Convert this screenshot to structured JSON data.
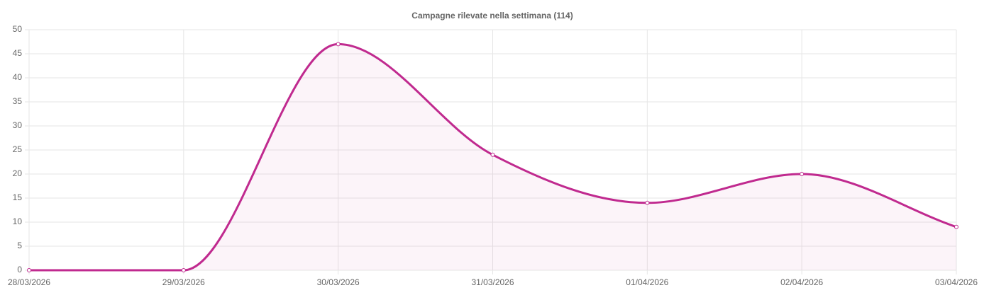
{
  "chart_data": {
    "type": "line",
    "title": "Campagne rilevate nella settimana (114)",
    "categories": [
      "28/03/2026",
      "29/03/2026",
      "30/03/2026",
      "31/03/2026",
      "01/04/2026",
      "02/04/2026",
      "03/04/2026"
    ],
    "values": [
      0,
      0,
      47,
      24,
      14,
      20,
      9
    ],
    "color": "#c02a8f",
    "fill": "rgba(192,42,143,0.05)",
    "ylim": [
      0,
      50
    ],
    "yticks": [
      0,
      5,
      10,
      15,
      20,
      25,
      30,
      35,
      40,
      45,
      50
    ],
    "grid": true
  }
}
